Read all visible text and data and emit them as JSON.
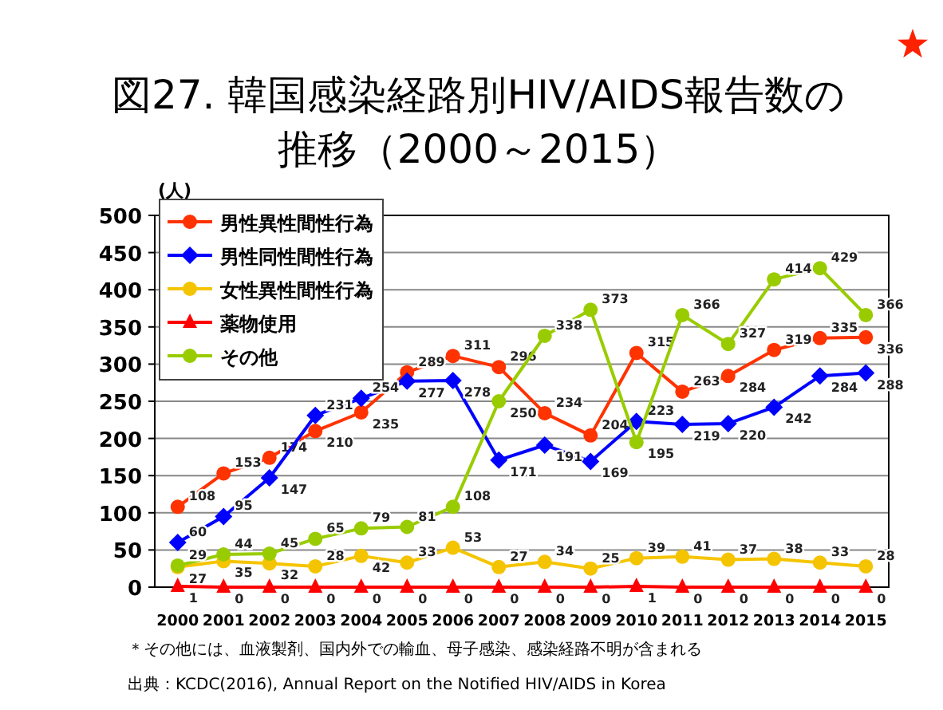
{
  "chart_data": {
    "type": "line",
    "title": "図27. 韓国感染経路別HIV/AIDS報告数の推移（2000～2015）",
    "ylabel": "(人)",
    "categories": [
      "2000",
      "2001",
      "2002",
      "2003",
      "2004",
      "2005",
      "2006",
      "2007",
      "2008",
      "2009",
      "2010",
      "2011",
      "2012",
      "2013",
      "2014",
      "2015"
    ],
    "series": [
      {
        "name": "男性異性間性行為",
        "color": "#ff3300",
        "marker": "circle",
        "values": [
          108,
          153,
          174,
          210,
          235,
          289,
          311,
          296,
          234,
          204,
          315,
          263,
          284,
          319,
          335,
          336
        ]
      },
      {
        "name": "男性同性間性行為",
        "color": "#0000ff",
        "marker": "diamond",
        "values": [
          60,
          95,
          147,
          231,
          254,
          277,
          278,
          171,
          191,
          169,
          223,
          219,
          220,
          242,
          284,
          288
        ]
      },
      {
        "name": "女性異性間性行為",
        "color": "#f5c400",
        "marker": "circle",
        "values": [
          27,
          35,
          32,
          28,
          42,
          33,
          53,
          27,
          34,
          25,
          39,
          41,
          37,
          38,
          33,
          28
        ]
      },
      {
        "name": "薬物使用",
        "color": "#ff0000",
        "marker": "triangle",
        "values": [
          1,
          0,
          0,
          0,
          0,
          0,
          0,
          0,
          0,
          0,
          1,
          0,
          0,
          0,
          0,
          0
        ]
      },
      {
        "name": "その他",
        "color": "#99cc00",
        "marker": "circle",
        "values": [
          29,
          44,
          45,
          65,
          79,
          81,
          108,
          250,
          338,
          373,
          195,
          366,
          327,
          414,
          429,
          366
        ]
      }
    ],
    "ylim": [
      0,
      500
    ],
    "yticks": [
      0,
      50,
      100,
      150,
      200,
      250,
      300,
      350,
      400,
      450,
      500
    ],
    "grid": "y",
    "legend": "top left",
    "data_labels": true,
    "annotations": [
      "＊その他には、血液製剤、国内外での輸血、母子感染、感染経路不明が含まれる",
      "出典：KCDC(2016),  Annual Report on the Notified HIV/AIDS in Korea"
    ]
  }
}
